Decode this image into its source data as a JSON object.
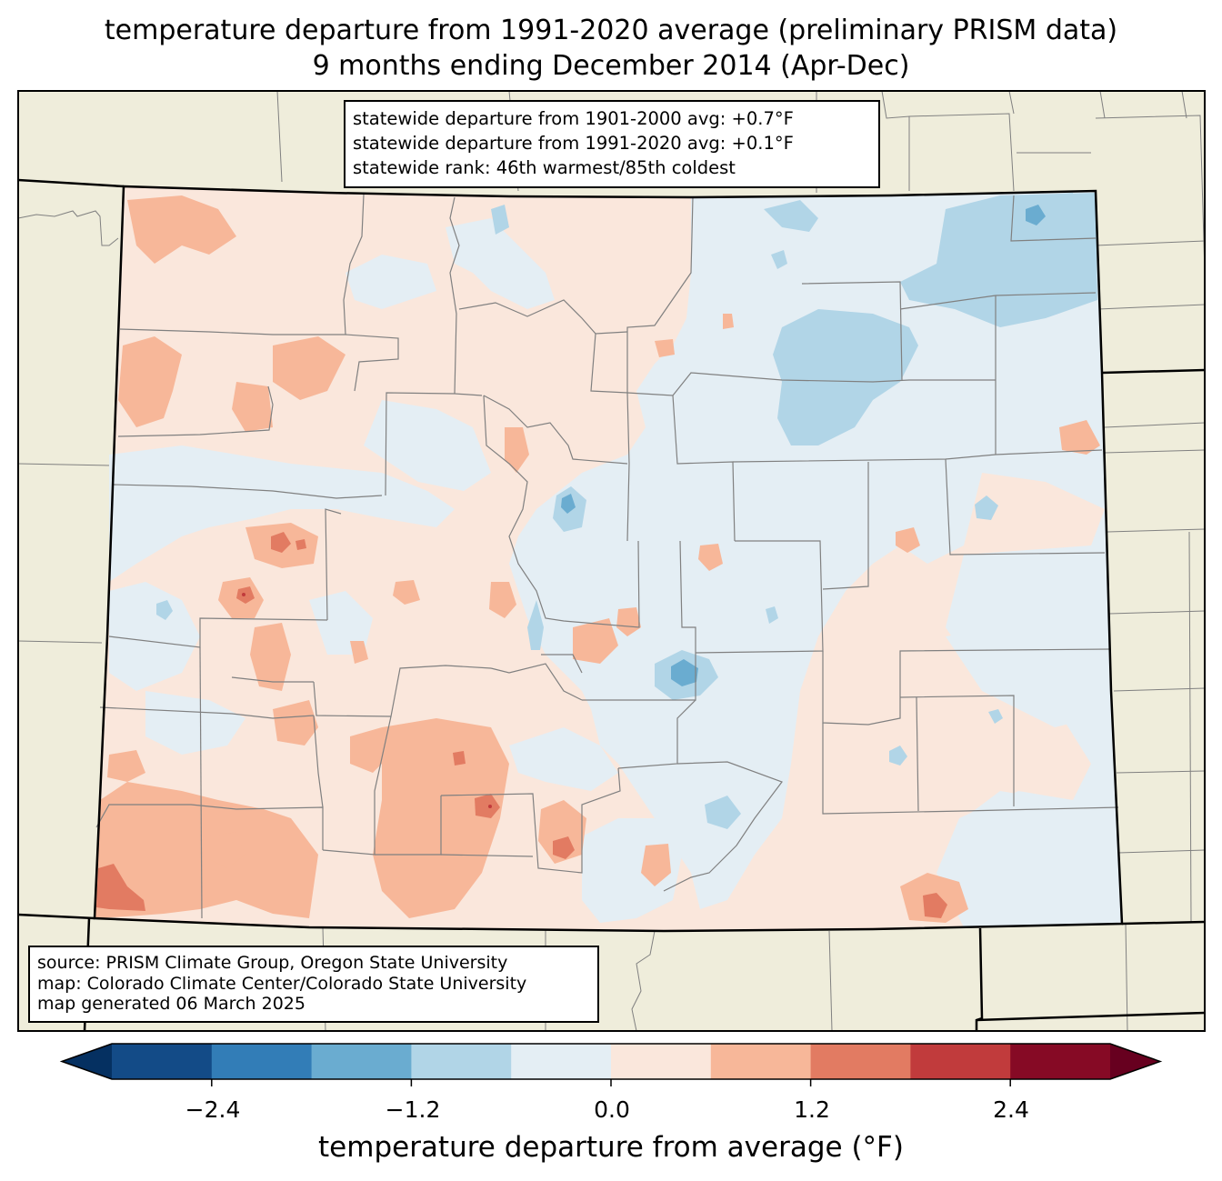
{
  "title": {
    "line1": "temperature departure from 1991-2020 average (preliminary PRISM data)",
    "line2": "9 months ending December 2014 (Apr-Dec)"
  },
  "stats": {
    "line1": "statewide departure from 1901-2000 avg: +0.7°F",
    "line2": "statewide departure from 1991-2020 avg: +0.1°F",
    "line3": "statewide rank: 46th warmest/85th coldest"
  },
  "source": {
    "line1": "source: PRISM Climate Group, Oregon State University",
    "line2": "map: Colorado Climate Center/Colorado State University",
    "line3": "map generated 06 March 2025"
  },
  "colorbar": {
    "label": "temperature departure from average (°F)",
    "ticks": [
      "−2.4",
      "−1.2",
      "0.0",
      "1.2",
      "2.4"
    ],
    "tick_values": [
      -2.4,
      -1.2,
      0.0,
      1.2,
      2.4
    ],
    "levels": [
      -3.0,
      -2.4,
      -1.8,
      -1.2,
      -0.6,
      0.0,
      0.6,
      1.2,
      1.8,
      2.4,
      3.0
    ],
    "colors": [
      "#053061",
      "#134b87",
      "#327db7",
      "#6aacd0",
      "#b1d5e7",
      "#e4eef4",
      "#fae7dc",
      "#f7b799",
      "#e27b62",
      "#c13b3c",
      "#860a25",
      "#67001f"
    ]
  },
  "map_colors": {
    "land_background": "#efeddb",
    "border": "#000000",
    "county_lines": "#808080",
    "ocean_none": "#ffffff"
  }
}
